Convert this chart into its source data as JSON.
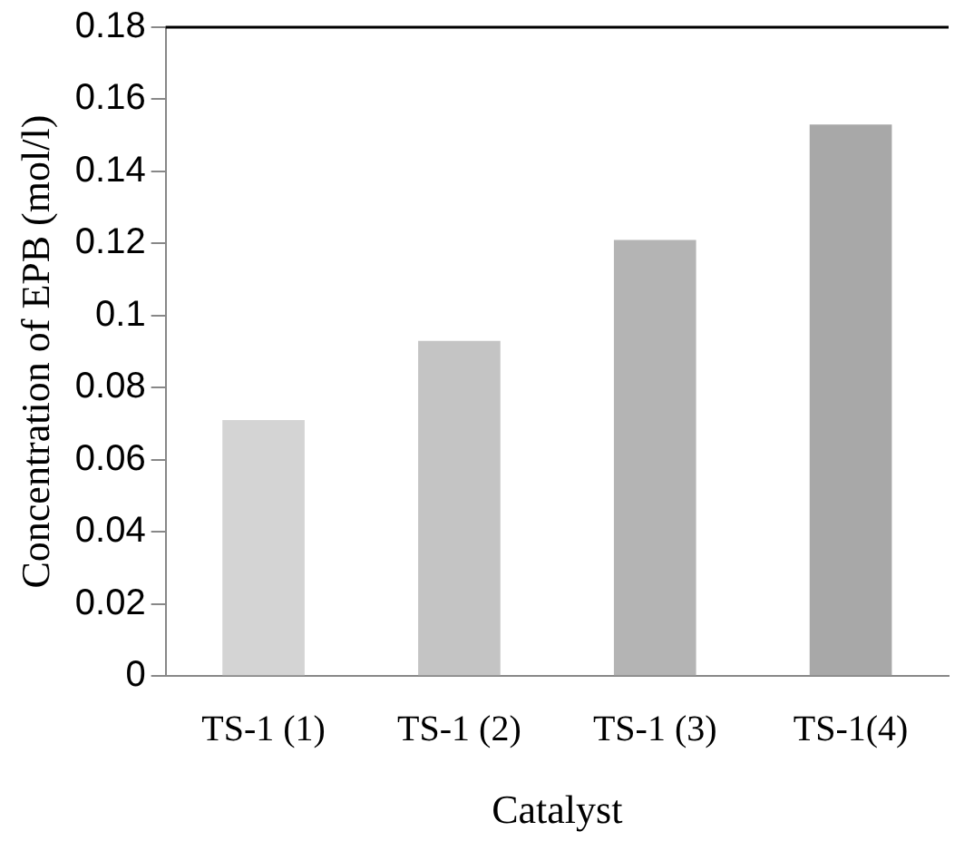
{
  "chart_data": {
    "type": "bar",
    "xlabel": "Catalyst",
    "ylabel": "Concentration of EPB (mol/l)",
    "categories": [
      "TS-1 (1)",
      "TS-1 (2)",
      "TS-1 (3)",
      "TS-1(4)"
    ],
    "values": [
      0.071,
      0.093,
      0.121,
      0.153
    ],
    "colors": [
      "#d4d4d4",
      "#c4c4c4",
      "#b4b4b4",
      "#a8a8a8"
    ],
    "ylim": [
      0,
      0.18
    ],
    "yticks": [
      0,
      0.02,
      0.04,
      0.06,
      0.08,
      0.1,
      0.12,
      0.14,
      0.16,
      0.18
    ],
    "grid": false,
    "legend": false
  }
}
